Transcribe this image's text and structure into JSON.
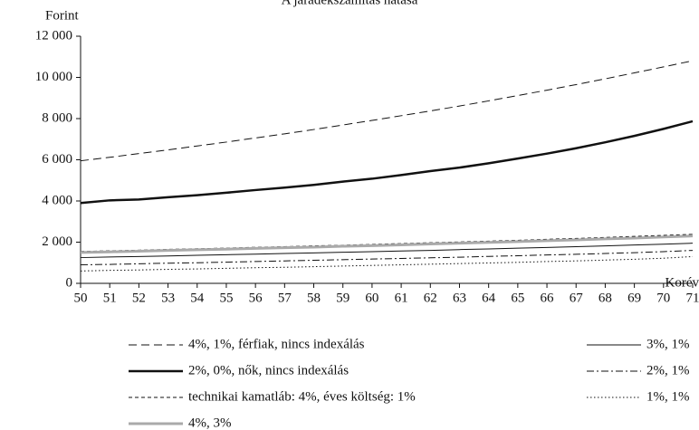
{
  "chart_data": {
    "type": "line",
    "title": "A járadékszámítás hatása",
    "y_label": "Forint",
    "x_label": "Korév",
    "x": [
      50,
      51,
      52,
      53,
      54,
      55,
      56,
      57,
      58,
      59,
      60,
      61,
      62,
      63,
      64,
      65,
      66,
      67,
      68,
      69,
      70,
      71
    ],
    "xlim": [
      50,
      71
    ],
    "xticks": [
      50,
      51,
      52,
      53,
      54,
      55,
      56,
      57,
      58,
      59,
      60,
      61,
      62,
      63,
      64,
      65,
      66,
      67,
      68,
      69,
      70,
      71
    ],
    "ylim": [
      0,
      12000
    ],
    "yticks": [
      0,
      {
        "value": 2000,
        "label": "2 000"
      },
      {
        "value": 4000,
        "label": "4 000"
      },
      {
        "value": 6000,
        "label": "6 000"
      },
      {
        "value": 8000,
        "label": "8 000"
      },
      {
        "value": 10000,
        "label": "10 000"
      },
      {
        "value": 12000,
        "label": "12 000"
      }
    ],
    "grid": false,
    "series": [
      {
        "name": "4%, 1%, férfiak, nincs indexálás",
        "color": "#111111",
        "dash": "dashed",
        "width": 1,
        "values": [
          5950,
          6120,
          6300,
          6480,
          6670,
          6860,
          7060,
          7260,
          7470,
          7690,
          7910,
          8140,
          8370,
          8610,
          8860,
          9120,
          9380,
          9650,
          9930,
          10220,
          10510,
          10810
        ]
      },
      {
        "name": "3%, 1%",
        "color": "#111111",
        "dash": "solid",
        "width": 1,
        "values": [
          1250,
          1280,
          1300,
          1330,
          1360,
          1390,
          1420,
          1450,
          1480,
          1510,
          1540,
          1570,
          1600,
          1640,
          1670,
          1710,
          1740,
          1780,
          1820,
          1860,
          1900,
          1950
        ]
      },
      {
        "name": "2%, 0%, nők, nincs indexálás",
        "color": "#111111",
        "dash": "solid",
        "width": 2.5,
        "values": [
          3900,
          4030,
          4070,
          4180,
          4280,
          4400,
          4530,
          4650,
          4780,
          4940,
          5080,
          5260,
          5450,
          5620,
          5830,
          6060,
          6300,
          6560,
          6850,
          7160,
          7500,
          7870
        ]
      },
      {
        "name": "2%, 1%",
        "color": "#111111",
        "dash": "dashdot",
        "width": 1,
        "values": [
          900,
          920,
          950,
          980,
          1000,
          1030,
          1060,
          1090,
          1120,
          1150,
          1180,
          1210,
          1240,
          1270,
          1310,
          1340,
          1380,
          1410,
          1450,
          1490,
          1540,
          1600
        ]
      },
      {
        "name": "technikai kamatláb: 4%, éves költség: 1%",
        "color": "#111111",
        "dash": "shortdash",
        "width": 1,
        "values": [
          1550,
          1580,
          1610,
          1650,
          1680,
          1710,
          1750,
          1780,
          1820,
          1850,
          1890,
          1930,
          1970,
          2010,
          2050,
          2090,
          2140,
          2180,
          2230,
          2280,
          2330,
          2380
        ]
      },
      {
        "name": "1%, 1%",
        "color": "#111111",
        "dash": "dotted",
        "width": 1,
        "values": [
          600,
          630,
          650,
          680,
          700,
          730,
          760,
          780,
          810,
          840,
          870,
          900,
          930,
          960,
          990,
          1020,
          1060,
          1090,
          1130,
          1170,
          1220,
          1300
        ]
      },
      {
        "name": "4%, 3%",
        "color": "#aaaaaa",
        "dash": "solid",
        "width": 3,
        "values": [
          1500,
          1530,
          1560,
          1600,
          1630,
          1660,
          1700,
          1730,
          1760,
          1800,
          1830,
          1870,
          1910,
          1950,
          1990,
          2030,
          2070,
          2110,
          2160,
          2200,
          2250,
          2300
        ]
      }
    ]
  }
}
